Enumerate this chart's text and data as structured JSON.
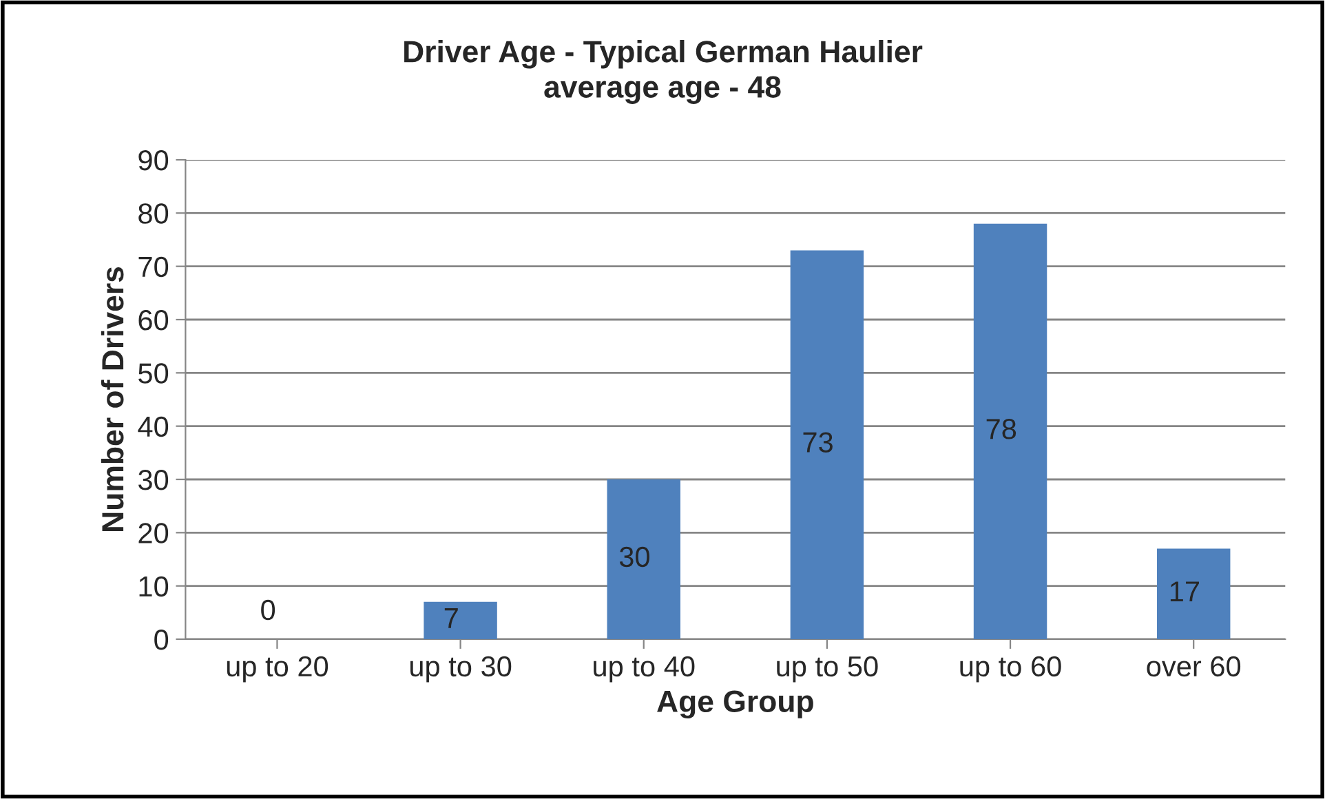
{
  "chart_data": {
    "type": "bar",
    "title": "Driver Age - Typical German Haulier\naverage age - 48",
    "xlabel": "Age Group",
    "ylabel": "Number of Drivers",
    "categories": [
      "up to 20",
      "up to 30",
      "up to 40",
      "up to 50",
      "up to 60",
      "over 60"
    ],
    "values": [
      0,
      7,
      30,
      73,
      78,
      17
    ],
    "color": "#4f81bd",
    "ylim": [
      0,
      90
    ],
    "yticks": [
      0,
      10,
      20,
      30,
      40,
      50,
      60,
      70,
      80,
      90
    ],
    "grid": "y",
    "data_labels": true,
    "legend": false
  }
}
